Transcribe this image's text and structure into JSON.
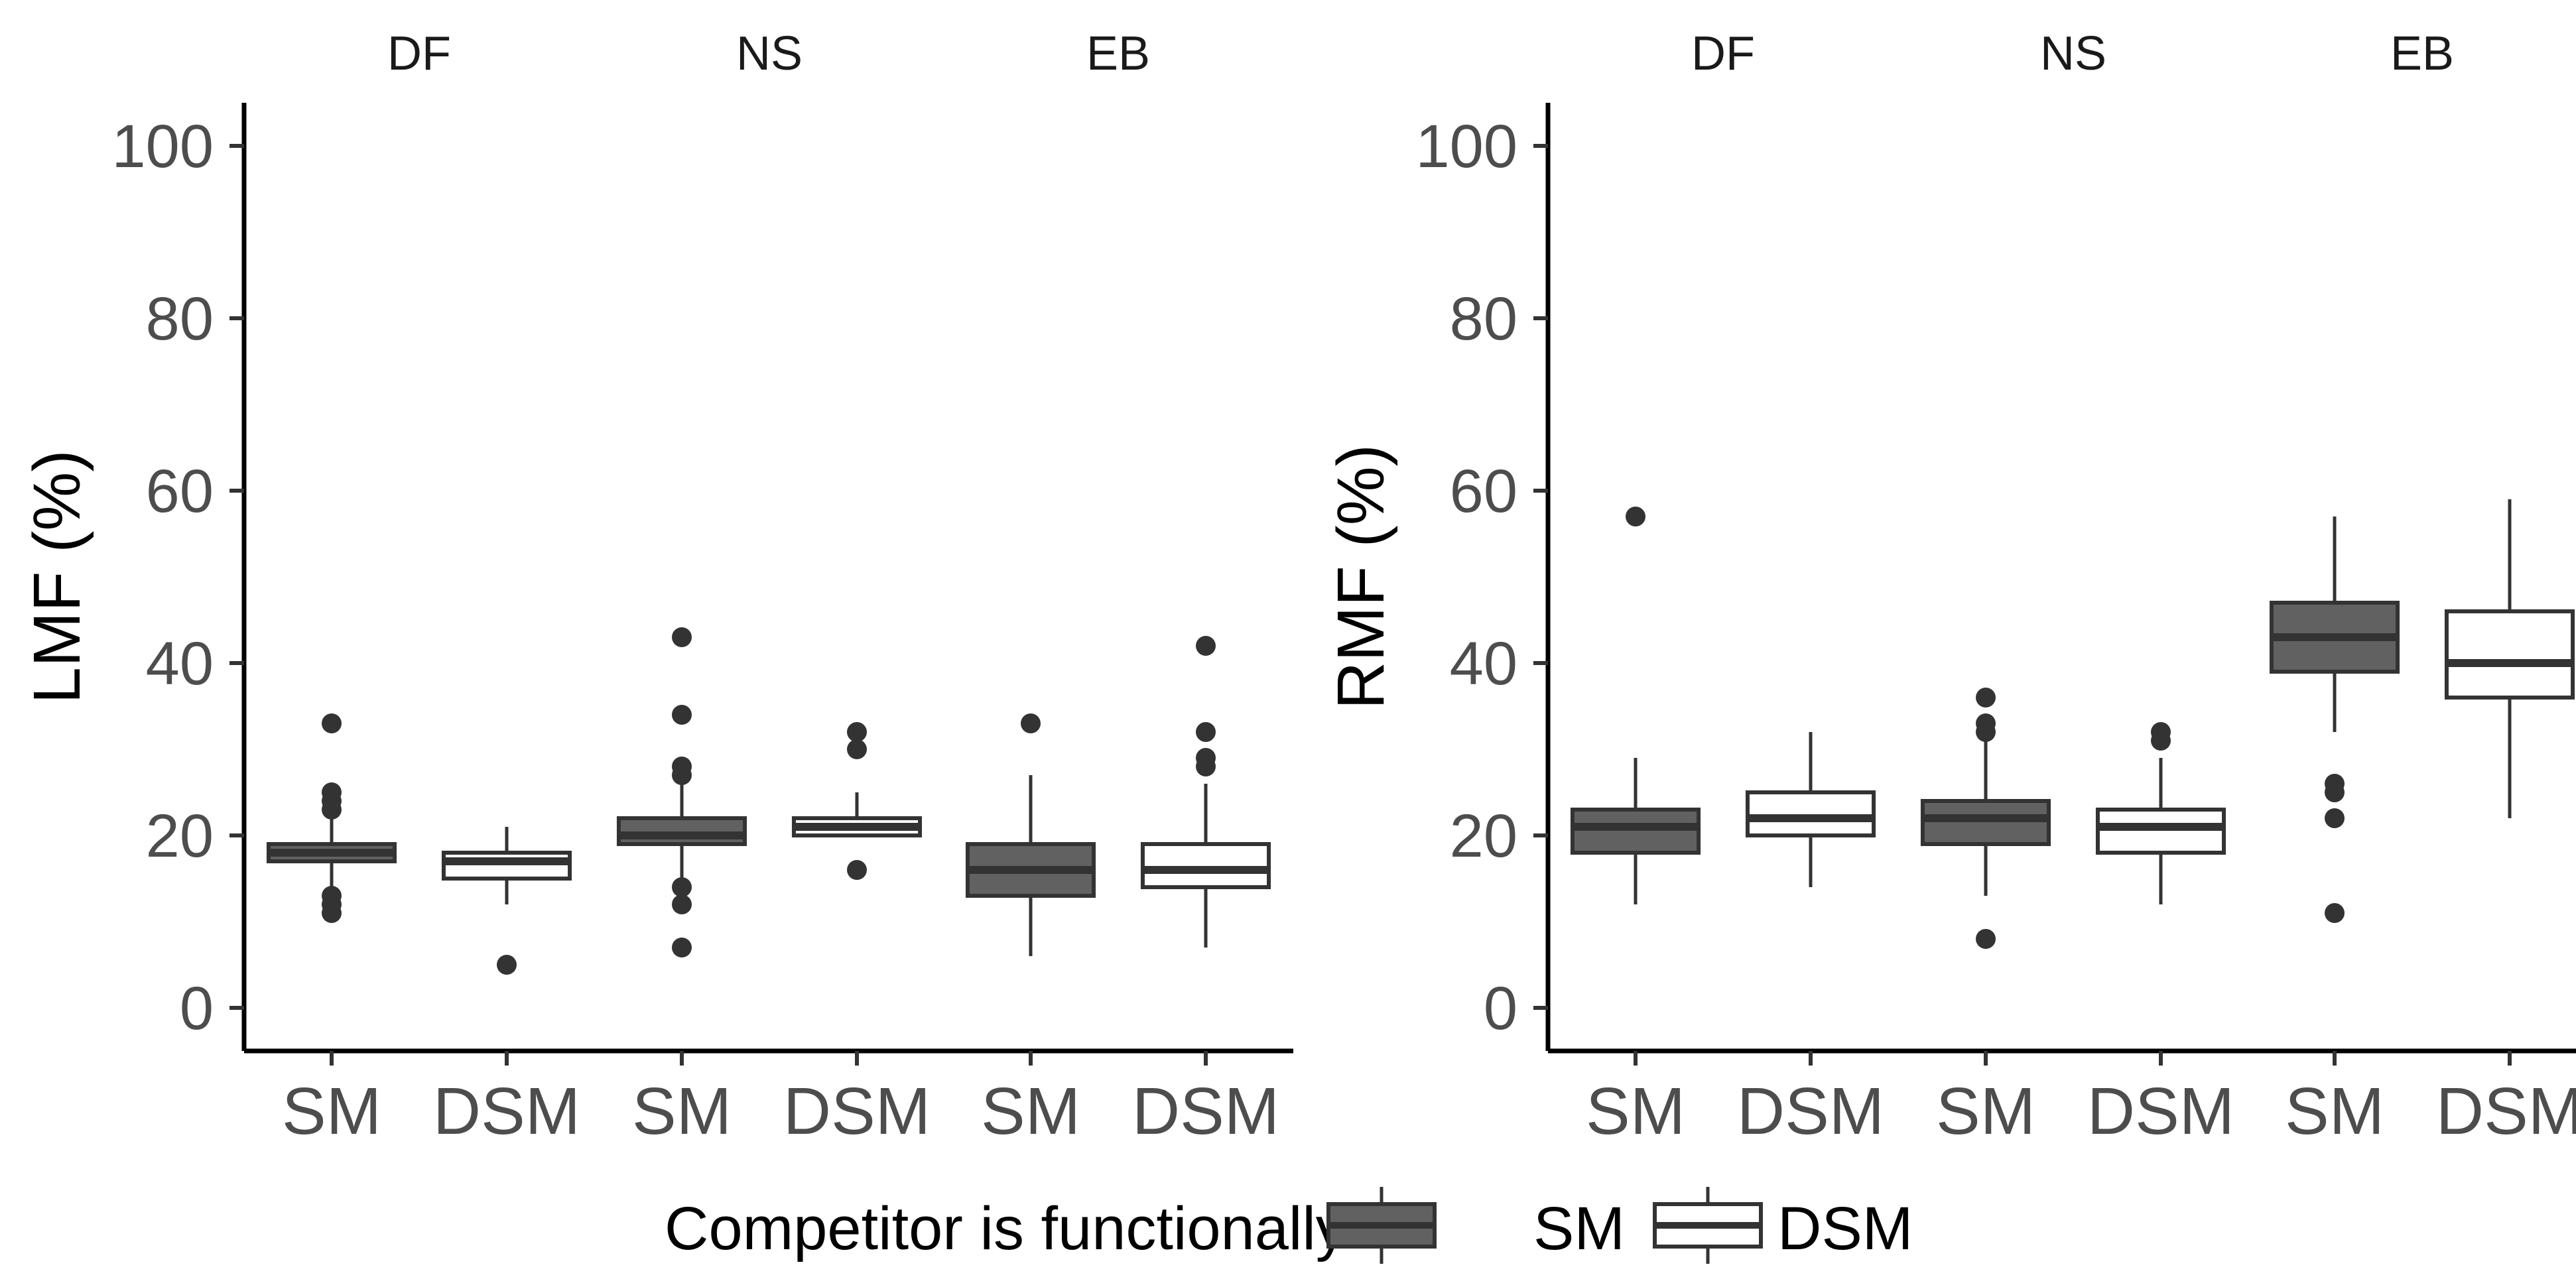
{
  "chart_data": [
    {
      "type": "box",
      "ylabel": "LMF (%)",
      "xlabel": "",
      "ylim": [
        -5,
        105
      ],
      "yticks": [
        0,
        20,
        40,
        60,
        80,
        100
      ],
      "panels": [
        {
          "name": "DF",
          "categories": [
            "SM",
            "DSM"
          ],
          "boxes": [
            {
              "group": "SM",
              "lower_whisker": 14,
              "q1": 17,
              "median": 18,
              "q3": 19,
              "upper_whisker": 22,
              "outliers": [
                11,
                12,
                13,
                23,
                24,
                25,
                33
              ]
            },
            {
              "group": "DSM",
              "lower_whisker": 12,
              "q1": 15,
              "median": 17,
              "q3": 18,
              "upper_whisker": 21,
              "outliers": [
                5
              ]
            }
          ]
        },
        {
          "name": "NS",
          "categories": [
            "SM",
            "DSM"
          ],
          "boxes": [
            {
              "group": "SM",
              "lower_whisker": 15,
              "q1": 19,
              "median": 20,
              "q3": 22,
              "upper_whisker": 26,
              "outliers": [
                7,
                12,
                14,
                27,
                28,
                34,
                43
              ]
            },
            {
              "group": "DSM",
              "lower_whisker": 20,
              "q1": 20,
              "median": 21,
              "q3": 22,
              "upper_whisker": 25,
              "outliers": [
                16,
                30,
                32
              ]
            }
          ]
        },
        {
          "name": "EB",
          "categories": [
            "SM",
            "DSM"
          ],
          "boxes": [
            {
              "group": "SM",
              "lower_whisker": 6,
              "q1": 13,
              "median": 16,
              "q3": 19,
              "upper_whisker": 27,
              "outliers": [
                33
              ]
            },
            {
              "group": "DSM",
              "lower_whisker": 7,
              "q1": 14,
              "median": 16,
              "q3": 19,
              "upper_whisker": 26,
              "outliers": [
                28,
                29,
                32,
                42
              ]
            }
          ]
        }
      ]
    },
    {
      "type": "box",
      "ylabel": "RMF (%)",
      "xlabel": "",
      "ylim": [
        -5,
        105
      ],
      "yticks": [
        0,
        20,
        40,
        60,
        80,
        100
      ],
      "panels": [
        {
          "name": "DF",
          "categories": [
            "SM",
            "DSM"
          ],
          "boxes": [
            {
              "group": "SM",
              "lower_whisker": 12,
              "q1": 18,
              "median": 21,
              "q3": 23,
              "upper_whisker": 29,
              "outliers": [
                57
              ]
            },
            {
              "group": "DSM",
              "lower_whisker": 14,
              "q1": 20,
              "median": 22,
              "q3": 25,
              "upper_whisker": 32,
              "outliers": []
            }
          ]
        },
        {
          "name": "NS",
          "categories": [
            "SM",
            "DSM"
          ],
          "boxes": [
            {
              "group": "SM",
              "lower_whisker": 13,
              "q1": 19,
              "median": 22,
              "q3": 24,
              "upper_whisker": 31,
              "outliers": [
                8,
                32,
                33,
                36
              ]
            },
            {
              "group": "DSM",
              "lower_whisker": 12,
              "q1": 18,
              "median": 21,
              "q3": 23,
              "upper_whisker": 29,
              "outliers": [
                31,
                32
              ]
            }
          ]
        },
        {
          "name": "EB",
          "categories": [
            "SM",
            "DSM"
          ],
          "boxes": [
            {
              "group": "SM",
              "lower_whisker": 32,
              "q1": 39,
              "median": 43,
              "q3": 47,
              "upper_whisker": 57,
              "outliers": [
                11,
                22,
                25,
                26
              ]
            },
            {
              "group": "DSM",
              "lower_whisker": 22,
              "q1": 36,
              "median": 40,
              "q3": 46,
              "upper_whisker": 59,
              "outliers": []
            }
          ]
        }
      ]
    }
  ],
  "legend": {
    "title": "Competitor is functionally",
    "position": "bottom",
    "items": [
      {
        "label": "SM",
        "fill": "#616161"
      },
      {
        "label": "DSM",
        "fill": "#ffffff"
      }
    ]
  },
  "colors": {
    "sm_fill": "#616161",
    "dsm_fill": "#ffffff",
    "line": "#333333",
    "axis": "#000000"
  }
}
